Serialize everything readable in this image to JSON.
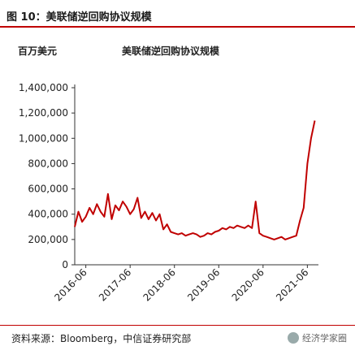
{
  "figure": {
    "title": "图 10：美联储逆回购协议规模",
    "source": "资料来源：Bloomberg，中信证券研究部",
    "watermark": "经济学家圈"
  },
  "chart_data": {
    "type": "line",
    "title": "美联储逆回购协议规模",
    "unit": "百万美元",
    "ylim": [
      0,
      1400000
    ],
    "y_ticks": [
      "0",
      "200,000",
      "400,000",
      "600,000",
      "800,000",
      "1,000,000",
      "1,200,000",
      "1,400,000"
    ],
    "x_ticks": [
      "2016-06",
      "2017-06",
      "2018-06",
      "2019-06",
      "2020-06",
      "2021-06"
    ],
    "xlim": [
      "2016-03",
      "2021-09"
    ],
    "grid": false,
    "line_color": "#c00000",
    "series": [
      {
        "x": [
          "2016-03",
          "2016-04",
          "2016-05",
          "2016-06",
          "2016-07",
          "2016-08",
          "2016-09",
          "2016-10",
          "2016-11",
          "2016-12",
          "2017-01",
          "2017-02",
          "2017-03",
          "2017-04",
          "2017-05",
          "2017-06",
          "2017-07",
          "2017-08",
          "2017-09",
          "2017-10",
          "2017-11",
          "2017-12",
          "2018-01",
          "2018-02",
          "2018-03",
          "2018-04",
          "2018-05",
          "2018-06",
          "2018-07",
          "2018-08",
          "2018-09",
          "2018-10",
          "2018-11",
          "2018-12",
          "2019-01",
          "2019-02",
          "2019-03",
          "2019-04",
          "2019-05",
          "2019-06",
          "2019-07",
          "2019-08",
          "2019-09",
          "2019-10",
          "2019-11",
          "2019-12",
          "2020-01",
          "2020-02",
          "2020-03",
          "2020-04",
          "2020-05",
          "2020-06",
          "2020-07",
          "2020-08",
          "2020-09",
          "2020-10",
          "2020-11",
          "2020-12",
          "2021-01",
          "2021-02",
          "2021-03",
          "2021-04",
          "2021-05",
          "2021-06",
          "2021-07",
          "2021-08"
        ],
        "values": [
          300000,
          420000,
          340000,
          380000,
          450000,
          400000,
          480000,
          420000,
          380000,
          560000,
          360000,
          470000,
          430000,
          500000,
          460000,
          400000,
          440000,
          530000,
          370000,
          420000,
          360000,
          410000,
          350000,
          400000,
          280000,
          320000,
          260000,
          250000,
          240000,
          250000,
          230000,
          240000,
          250000,
          240000,
          220000,
          230000,
          250000,
          240000,
          260000,
          270000,
          290000,
          280000,
          300000,
          290000,
          310000,
          300000,
          290000,
          310000,
          290000,
          500000,
          250000,
          230000,
          220000,
          210000,
          200000,
          210000,
          220000,
          200000,
          210000,
          220000,
          230000,
          350000,
          450000,
          800000,
          1000000,
          1140000
        ]
      }
    ]
  }
}
